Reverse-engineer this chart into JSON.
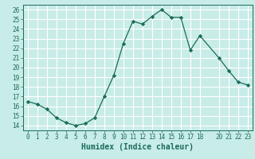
{
  "title": "",
  "xlabel": "Humidex (Indice chaleur)",
  "ylabel": "",
  "x": [
    0,
    1,
    2,
    3,
    4,
    5,
    6,
    7,
    8,
    9,
    10,
    11,
    12,
    13,
    14,
    15,
    16,
    17,
    18,
    20,
    21,
    22,
    23
  ],
  "y": [
    16.5,
    16.2,
    15.7,
    14.8,
    14.3,
    14.0,
    14.2,
    14.8,
    17.0,
    19.2,
    22.5,
    24.8,
    24.5,
    25.3,
    26.0,
    25.2,
    25.2,
    21.8,
    23.3,
    21.0,
    19.7,
    18.5,
    18.2
  ],
  "xlim": [
    -0.5,
    23.5
  ],
  "ylim": [
    13.5,
    26.5
  ],
  "yticks": [
    14,
    15,
    16,
    17,
    18,
    19,
    20,
    21,
    22,
    23,
    24,
    25,
    26
  ],
  "xticks": [
    0,
    1,
    2,
    3,
    4,
    5,
    6,
    7,
    8,
    9,
    10,
    11,
    12,
    13,
    14,
    15,
    16,
    17,
    18,
    20,
    21,
    22,
    23
  ],
  "line_color": "#1a6b5a",
  "marker": "D",
  "marker_size": 2.2,
  "bg_color": "#c8ece8",
  "grid_color": "#ffffff",
  "axis_fontsize": 6.5,
  "tick_fontsize": 5.5,
  "xlabel_fontsize": 7
}
